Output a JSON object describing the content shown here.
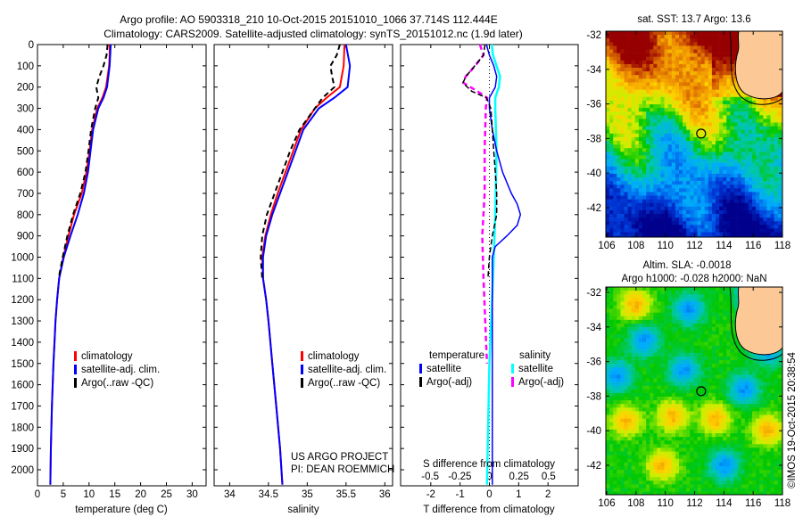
{
  "title_line1": "Argo profile: AO 5903318_210 10-Oct-2015 20151010_1066 37.714S 112.444E",
  "title_line2": "Climatology: CARS2009. Satellite-adjusted climatology: synTS_20151012.nc (1.9d later)",
  "credit": "©IMOS 19-Oct-2015 20:38:54",
  "project_line1": "US ARGO PROJECT",
  "project_line2": "PI: DEAN ROEMMICH",
  "colors": {
    "climatology": "#ff0000",
    "satellite": "#0000ff",
    "argo": "#000000",
    "sal_satellite": "#00ffff",
    "sal_argo": "#ff00ff"
  },
  "depth_ticks": [
    "0",
    "100",
    "200",
    "300",
    "400",
    "500",
    "600",
    "700",
    "800",
    "900",
    "1000",
    "1100",
    "1200",
    "1300",
    "1400",
    "1500",
    "1600",
    "1700",
    "1800",
    "1900",
    "2000"
  ],
  "chart_data": [
    {
      "type": "line",
      "xlabel": "temperature (deg C)",
      "ylabel": "depth",
      "xlim": [
        0,
        32.7
      ],
      "ylim": [
        2070,
        0
      ],
      "xticks": [
        "0",
        "5",
        "10",
        "15",
        "20",
        "25",
        "30"
      ],
      "legend": [
        "climatology",
        "satellite-adj. clim.",
        "Argo(..raw -QC)"
      ],
      "series": [
        {
          "name": "climatology",
          "depth": [
            0,
            50,
            100,
            200,
            250,
            300,
            400,
            500,
            600,
            700,
            800,
            900,
            1000,
            1100,
            1200,
            1300,
            1400,
            1500,
            1700,
            1900,
            2070
          ],
          "values": [
            14,
            14,
            13.9,
            13.3,
            12.6,
            11.6,
            10.6,
            10.1,
            9.5,
            8.6,
            7.1,
            6.0,
            5.0,
            4.2,
            3.8,
            3.5,
            3.3,
            3.1,
            2.8,
            2.6,
            2.5
          ]
        },
        {
          "name": "satellite-adj. clim.",
          "depth": [
            0,
            50,
            100,
            200,
            250,
            300,
            400,
            500,
            600,
            700,
            800,
            900,
            1000,
            1100,
            1200,
            1300,
            1400,
            1500,
            1700,
            1900,
            2070
          ],
          "values": [
            14.2,
            14.1,
            14,
            13.5,
            12.8,
            11.8,
            10.8,
            10.3,
            9.8,
            9.0,
            7.8,
            6.4,
            5.1,
            4.2,
            3.8,
            3.5,
            3.3,
            3.1,
            2.8,
            2.6,
            2.5
          ]
        },
        {
          "name": "Argo(..raw -QC)",
          "depth": [
            0,
            50,
            100,
            150,
            200,
            250,
            300,
            400,
            500,
            600,
            700,
            800,
            900,
            1000,
            1100
          ],
          "values": [
            13.6,
            13.4,
            12.8,
            12.0,
            11.4,
            11.8,
            11.2,
            10.4,
            9.9,
            9.3,
            8.3,
            6.9,
            5.8,
            4.9,
            4.1
          ]
        }
      ]
    },
    {
      "type": "line",
      "xlabel": "salinity",
      "ylabel": "depth",
      "xlim": [
        33.8,
        36.1
      ],
      "ylim": [
        2070,
        0
      ],
      "xticks": [
        "34",
        "34.5",
        "35",
        "35.5",
        "36"
      ],
      "legend": [
        "climatology",
        "satellite-adj. clim.",
        "Argo(..raw -QC)"
      ],
      "series": [
        {
          "name": "climatology",
          "depth": [
            0,
            100,
            200,
            250,
            300,
            400,
            500,
            600,
            700,
            800,
            900,
            1000,
            1100,
            1200,
            1300,
            1500,
            1700,
            1900,
            2070
          ],
          "values": [
            35.48,
            35.47,
            35.42,
            35.25,
            35.1,
            34.92,
            34.82,
            34.72,
            34.62,
            34.53,
            34.46,
            34.42,
            34.43,
            34.47,
            34.5,
            34.55,
            34.6,
            34.65,
            34.68
          ]
        },
        {
          "name": "satellite-adj. clim.",
          "depth": [
            0,
            100,
            200,
            250,
            300,
            400,
            500,
            600,
            700,
            800,
            900,
            1000,
            1100,
            1200,
            1300,
            1500,
            1700,
            1900,
            2070
          ],
          "values": [
            35.5,
            35.55,
            35.52,
            35.35,
            35.15,
            34.95,
            34.85,
            34.75,
            34.65,
            34.55,
            34.47,
            34.43,
            34.43,
            34.47,
            34.5,
            34.55,
            34.6,
            34.65,
            34.68
          ]
        },
        {
          "name": "Argo(..raw -QC)",
          "depth": [
            0,
            50,
            100,
            150,
            200,
            250,
            300,
            400,
            500,
            600,
            700,
            800,
            900,
            1000,
            1100
          ],
          "values": [
            35.42,
            35.38,
            35.3,
            35.32,
            35.35,
            35.2,
            35.1,
            34.9,
            34.78,
            34.68,
            34.58,
            34.48,
            34.42,
            34.4,
            34.42
          ]
        }
      ]
    },
    {
      "type": "line",
      "xlabel": "T difference from climatology",
      "x2label": "S difference from climatology",
      "ylabel": "depth",
      "xlim": [
        -3.03,
        3.03
      ],
      "x2lim": [
        -0.75,
        0.75
      ],
      "ylim": [
        2070,
        0
      ],
      "xticks": [
        "-2",
        "-1",
        "0",
        "1",
        "2"
      ],
      "x2ticks": [
        "-0.5",
        "-0.25",
        "0",
        "0.25",
        "0.5"
      ],
      "legend": {
        "temperature_title": "temperature",
        "salinity_title": "salinity",
        "t_satellite": "satellite",
        "t_argo": "Argo(-adj)",
        "s_satellite": "satellite",
        "s_argo": "Argo(-adj)"
      },
      "series": [
        {
          "name": "T satellite",
          "depth": [
            0,
            50,
            100,
            150,
            200,
            250,
            300,
            400,
            500,
            600,
            700,
            750,
            800,
            850,
            900,
            950,
            1000,
            1100,
            1500,
            2070
          ],
          "values": [
            -0.1,
            0,
            0.15,
            0.25,
            0.2,
            0,
            0,
            0.1,
            0.25,
            0.45,
            0.75,
            0.95,
            1.06,
            0.95,
            0.6,
            0.2,
            0.1,
            0.1,
            0.1,
            0.1
          ]
        },
        {
          "name": "T Argo(-adj)",
          "depth": [
            0,
            50,
            100,
            150,
            180,
            220,
            250,
            300,
            400,
            500,
            600,
            700,
            800,
            900,
            1000,
            1100
          ],
          "values": [
            -0.15,
            -0.2,
            -0.5,
            -0.8,
            -0.9,
            -0.6,
            -0.1,
            0.05,
            0.1,
            0.15,
            0.2,
            0.25,
            0.25,
            0.1,
            0,
            -0.05
          ]
        }
      ],
      "series_s": [
        {
          "name": "S satellite",
          "depth": [
            0,
            50,
            100,
            150,
            200,
            250,
            300,
            500,
            800,
            1100,
            1500,
            2070
          ],
          "values": [
            0.02,
            0.03,
            0.06,
            0.09,
            0.08,
            0.05,
            0.05,
            0.06,
            0.05,
            0.03,
            0.0,
            -0.02
          ]
        },
        {
          "name": "S Argo(-adj)",
          "depth": [
            0,
            50,
            100,
            150,
            180,
            220,
            250,
            300,
            500,
            700,
            900,
            1100,
            1500
          ],
          "values": [
            -0.08,
            -0.05,
            -0.12,
            -0.2,
            -0.22,
            -0.1,
            -0.02,
            -0.03,
            -0.04,
            -0.04,
            -0.06,
            -0.05,
            -0.02
          ]
        }
      ]
    }
  ],
  "maps": [
    {
      "title": "sat. SST: 13.7 Argo: 13.6",
      "lon_ticks": [
        "106",
        "108",
        "110",
        "112",
        "114",
        "116",
        "118"
      ],
      "lat_ticks": [
        "-32",
        "-34",
        "-36",
        "-38",
        "-40",
        "-42"
      ],
      "argo_lon": 112.444,
      "argo_lat": -37.714
    },
    {
      "title1": "Altim. SLA: -0.0018",
      "title2": "Argo h1000: -0.028 h2000: NaN",
      "lon_ticks": [
        "106",
        "108",
        "110",
        "112",
        "114",
        "116",
        "118"
      ],
      "lat_ticks": [
        "-32",
        "-34",
        "-36",
        "-38",
        "-40",
        "-42"
      ],
      "argo_lon": 112.444,
      "argo_lat": -37.714
    }
  ]
}
